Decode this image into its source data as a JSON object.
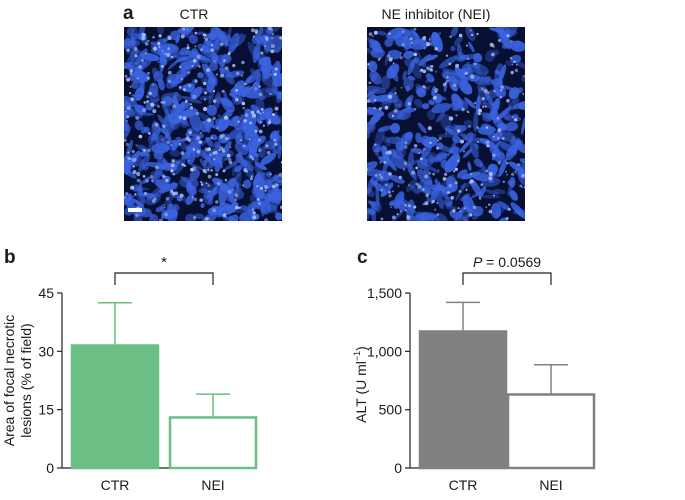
{
  "panel_a": {
    "letter": "a",
    "images": [
      {
        "title": "CTR"
      },
      {
        "title": "NE inhibitor (NEI)"
      }
    ],
    "colors": {
      "background": "#071033",
      "stain": "#3b63e0"
    }
  },
  "chart_data": [
    {
      "type": "bar",
      "letter": "b",
      "categories": [
        "CTR",
        "NEI"
      ],
      "values": [
        31.5,
        13
      ],
      "errors": [
        11,
        6
      ],
      "ylabel": "Area of focal necrotic lesions (% of field)",
      "ylabel_lines": [
        "Area of focal necrotic",
        "lesions (% of field)"
      ],
      "yticks": [
        0,
        15,
        30,
        45
      ],
      "ytick_labels": [
        "0",
        "15",
        "30",
        "45"
      ],
      "ylim": [
        0,
        45
      ],
      "significance": "*",
      "bar_fill": [
        "#6cbf84",
        "#ffffff"
      ],
      "bar_stroke": [
        "#6cbf84",
        "#6cbf84"
      ],
      "error_color": "#6cbf84"
    },
    {
      "type": "bar",
      "letter": "c",
      "categories": [
        "CTR",
        "NEI"
      ],
      "values": [
        1170,
        630
      ],
      "errors": [
        250,
        255
      ],
      "ylabel_prefix": "ALT (U ml",
      "ylabel_sup": "−1",
      "ylabel_suffix": ")",
      "yticks": [
        0,
        500,
        1000,
        1500
      ],
      "ytick_labels": [
        "0",
        "500",
        "1,000",
        "1,500"
      ],
      "ylim": [
        0,
        1500
      ],
      "significance_p": "P",
      "significance_value": " = 0.0569",
      "bar_fill": [
        "#808080",
        "#ffffff"
      ],
      "bar_stroke": [
        "#808080",
        "#808080"
      ],
      "error_color": "#808080"
    }
  ]
}
